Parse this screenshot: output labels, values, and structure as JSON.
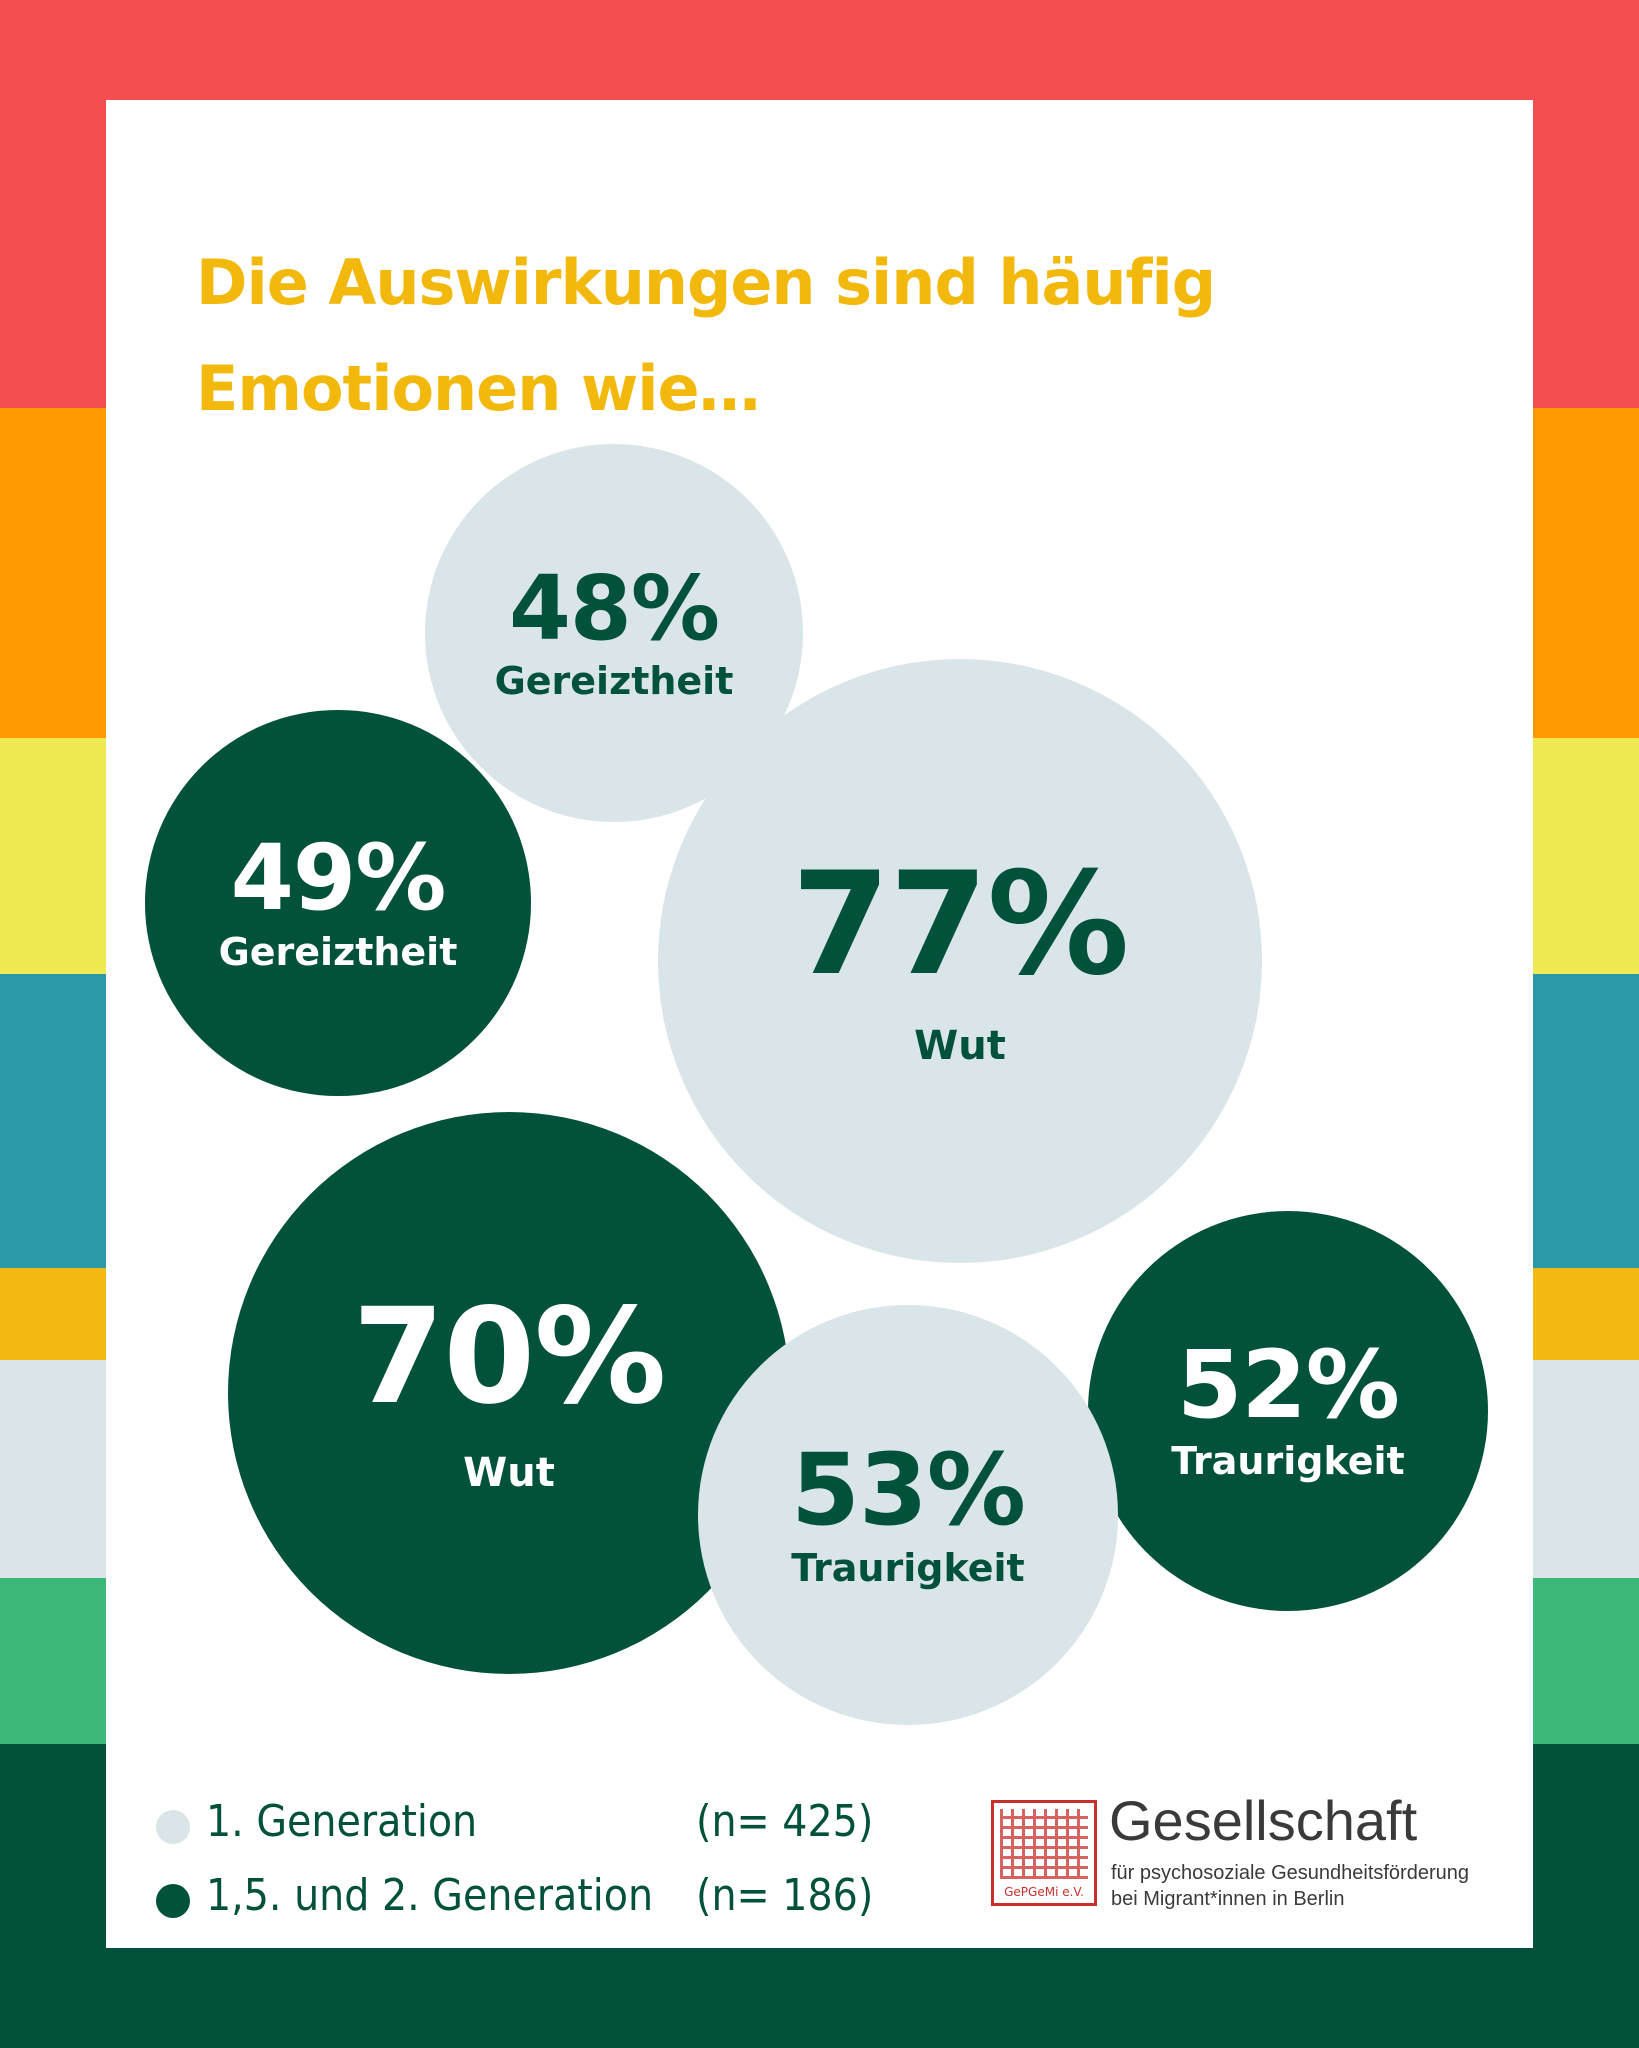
{
  "colors": {
    "stripes": [
      "#f44e50",
      "#fe9900",
      "#efe952",
      "#2a99a8",
      "#f2b913",
      "#d9e5e8",
      "#3cb978",
      "#02513a"
    ],
    "title": "#f2b80c",
    "first_generation": "#d9e5e8",
    "later_generation": "#02513a",
    "seal": "#c9302c"
  },
  "chart_data": {
    "type": "bubble",
    "title": "Die Auswirkungen sind häufig Emotionen wie…",
    "series": [
      {
        "name": "1. Generation",
        "n": "(n= 425)",
        "color": "#d9e5e8",
        "values": [
          {
            "label": "Gereiztheit",
            "value": 48
          },
          {
            "label": "Wut",
            "value": 77
          },
          {
            "label": "Traurigkeit",
            "value": 53
          }
        ]
      },
      {
        "name": "1,5. und 2. Generation",
        "n": "(n= 186)",
        "color": "#02513a",
        "values": [
          {
            "label": "Gereiztheit",
            "value": 49
          },
          {
            "label": "Wut",
            "value": 70
          },
          {
            "label": "Traurigkeit",
            "value": 52
          }
        ]
      }
    ],
    "legend": "bottom-left"
  },
  "legend": {
    "items": [
      {
        "label": "1. Generation",
        "n": "(n= 425)"
      },
      {
        "label": "1,5. und 2. Generation",
        "n": "(n= 186)"
      }
    ]
  },
  "logo": {
    "seal_text": "GePGeMi e.V.",
    "name": "Gesellschaft",
    "line1": "für psychosoziale Gesundheitsförderung",
    "line2": "bei Migrant*innen in Berlin"
  }
}
